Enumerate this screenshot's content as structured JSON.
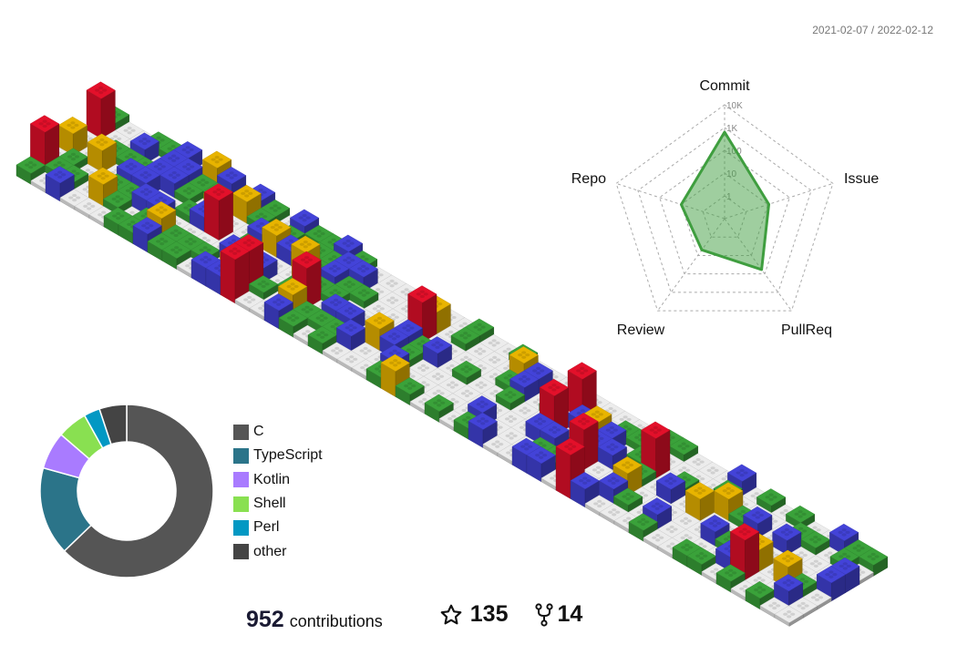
{
  "period": "2021-02-07 / 2022-02-12",
  "colors": {
    "level1": "#3aa23a",
    "level2": "#4343d8",
    "level3": "#e8b400",
    "level4": "#e3102a",
    "empty": "#ececec",
    "radar": "#3f9e3f"
  },
  "radar": {
    "scale_labels": [
      "1",
      "10",
      "100",
      "1K",
      "10K"
    ],
    "axes": [
      {
        "label": "Commit",
        "value": 630
      },
      {
        "label": "Issue",
        "value": 11
      },
      {
        "label": "PullReq",
        "value": 58
      },
      {
        "label": "Review",
        "value": 5
      },
      {
        "label": "Repo",
        "value": 10
      }
    ]
  },
  "languages": [
    {
      "name": "C",
      "percent": 62.8,
      "color": "#555555"
    },
    {
      "name": "TypeScript",
      "percent": 16.5,
      "color": "#2b7489"
    },
    {
      "name": "Kotlin",
      "percent": 7.0,
      "color": "#a97bff"
    },
    {
      "name": "Shell",
      "percent": 5.6,
      "color": "#89e051"
    },
    {
      "name": "Perl",
      "percent": 3.0,
      "color": "#0298c3"
    },
    {
      "name": "other",
      "percent": 5.1,
      "color": "#444444"
    }
  ],
  "stats": {
    "contributions": "952",
    "contributions_label": "contributions",
    "stars": "135",
    "forks": "14",
    "star_icon": "star-icon",
    "fork_icon": "fork-icon"
  }
}
